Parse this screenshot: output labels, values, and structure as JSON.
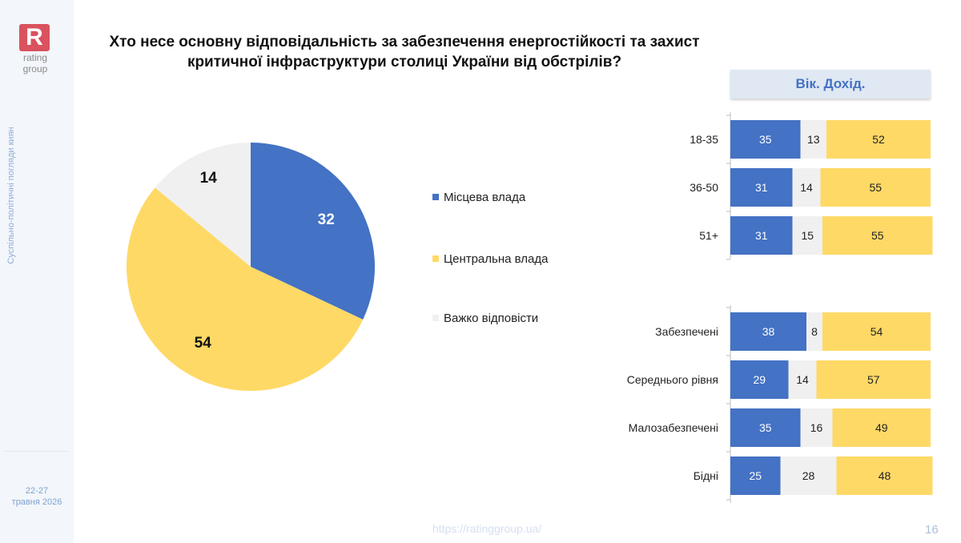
{
  "brand": {
    "logo_letter": "R",
    "logo_line1": "rating",
    "logo_line2": "group"
  },
  "sidebar": {
    "vertical_text": "Суспільно-політичні погляди киян",
    "date_line1": "22-27",
    "date_line2": "травня 2026"
  },
  "footer": {
    "url": "https://ratinggroup.ua/",
    "page_number": "16"
  },
  "colors": {
    "local": "#4472c4",
    "central": "#ffd966",
    "hard": "#f0f0f0"
  },
  "chart_data": [
    {
      "type": "pie",
      "title": "Хто несе основну відповідальність за забезпечення енергостійкості та захист критичної інфраструктури столиці України від обстрілів?",
      "categories": [
        "Місцева влада",
        "Центральна влада",
        "Важко відповісти"
      ],
      "values": [
        32,
        54,
        14
      ],
      "legend": "right"
    },
    {
      "type": "bar",
      "stacked": true,
      "orientation": "horizontal",
      "title": "Вік. Дохід.",
      "groups": [
        {
          "categories": [
            "18-35",
            "36-50",
            "51+"
          ]
        },
        {
          "categories": [
            "Забезпечені",
            "Середнього рівня",
            "Малозабезпечені",
            "Бідні"
          ]
        }
      ],
      "categories": [
        "18-35",
        "36-50",
        "51+",
        "Забезпечені",
        "Середнього рівня",
        "Малозабезпечені",
        "Бідні"
      ],
      "series": [
        {
          "name": "Місцева влада",
          "values": [
            35,
            31,
            31,
            38,
            29,
            35,
            25
          ]
        },
        {
          "name": "Важко відповісти",
          "values": [
            13,
            14,
            15,
            8,
            14,
            16,
            28
          ]
        },
        {
          "name": "Центральна влада",
          "values": [
            52,
            55,
            55,
            54,
            57,
            49,
            48
          ]
        }
      ],
      "xlim": [
        0,
        100
      ]
    }
  ]
}
